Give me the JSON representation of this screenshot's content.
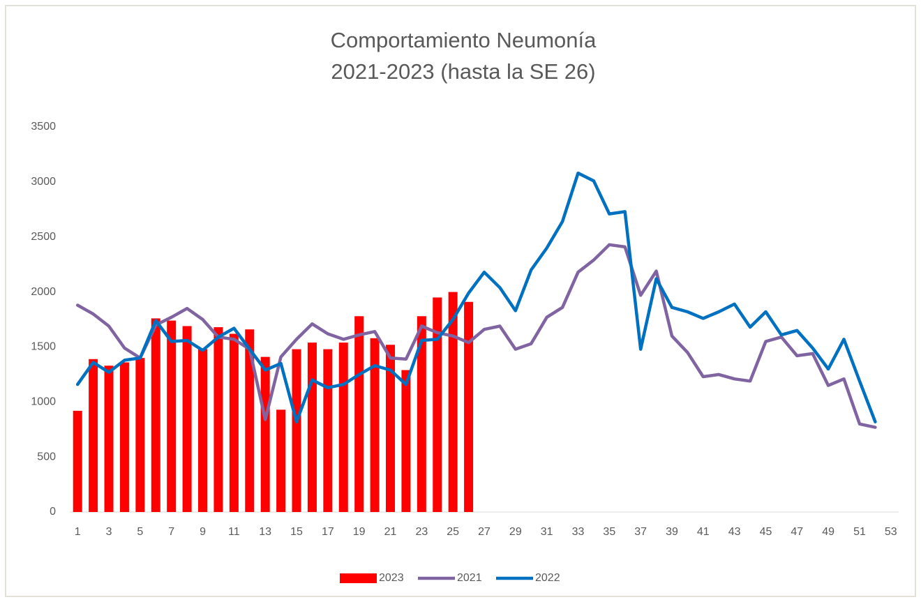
{
  "chart_data": {
    "type": "combo",
    "title": "Comportamiento Neumonía",
    "subtitle": "2021-2023 (hasta la SE 26)",
    "categories": [
      1,
      null,
      3,
      null,
      5,
      null,
      7,
      null,
      9,
      null,
      11,
      null,
      13,
      null,
      15,
      null,
      17,
      null,
      19,
      null,
      21,
      null,
      23,
      null,
      25,
      null,
      27,
      null,
      29,
      null,
      31,
      null,
      33,
      null,
      35,
      null,
      37,
      null,
      39,
      null,
      41,
      null,
      43,
      null,
      45,
      null,
      47,
      null,
      49,
      null,
      51,
      null,
      53
    ],
    "ylim": [
      0,
      3500
    ],
    "yticks": [
      0,
      500,
      1000,
      1500,
      2000,
      2500,
      3000,
      3500
    ],
    "grid": false,
    "legend": "bottom",
    "series": [
      {
        "name": "2023",
        "type": "bar",
        "color": "#ff0000",
        "values": [
          920,
          1390,
          1330,
          1360,
          1400,
          1760,
          1740,
          1690,
          1480,
          1680,
          1620,
          1660,
          1410,
          930,
          1480,
          1540,
          1480,
          1540,
          1780,
          1580,
          1520,
          1290,
          1780,
          1950,
          2000,
          1910,
          null,
          null,
          null,
          null,
          null,
          null,
          null,
          null,
          null,
          null,
          null,
          null,
          null,
          null,
          null,
          null,
          null,
          null,
          null,
          null,
          null,
          null,
          null,
          null,
          null,
          null,
          null
        ]
      },
      {
        "name": "2021",
        "type": "line",
        "color": "#8064a2",
        "values": [
          1880,
          1800,
          1690,
          1490,
          1400,
          1700,
          1770,
          1850,
          1750,
          1590,
          1570,
          1480,
          840,
          1410,
          1570,
          1710,
          1620,
          1570,
          1610,
          1640,
          1400,
          1390,
          1690,
          1630,
          1600,
          1540,
          1660,
          1690,
          1480,
          1530,
          1770,
          1860,
          2180,
          2290,
          2430,
          2410,
          1970,
          2190,
          1600,
          1450,
          1230,
          1250,
          1210,
          1190,
          1550,
          1590,
          1420,
          1440,
          1150,
          1210,
          800,
          770,
          null
        ]
      },
      {
        "name": "2022",
        "type": "line",
        "color": "#0070c0",
        "values": [
          1160,
          1360,
          1270,
          1380,
          1400,
          1740,
          1550,
          1560,
          1470,
          1590,
          1670,
          1480,
          1290,
          1350,
          820,
          1200,
          1130,
          1160,
          1250,
          1330,
          1290,
          1160,
          1560,
          1570,
          1750,
          1990,
          2180,
          2040,
          1830,
          2200,
          2400,
          2640,
          3080,
          3010,
          2710,
          2730,
          1480,
          2120,
          1860,
          1820,
          1760,
          1820,
          1890,
          1680,
          1820,
          1610,
          1650,
          1490,
          1300,
          1570,
          1190,
          820,
          null
        ]
      }
    ]
  }
}
